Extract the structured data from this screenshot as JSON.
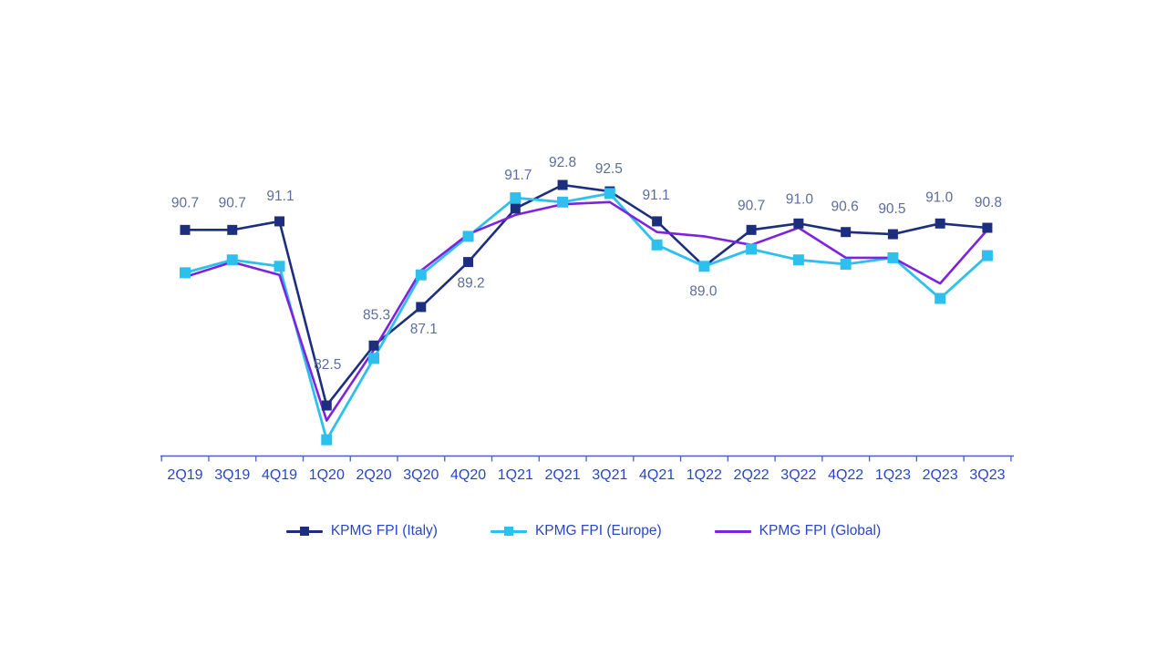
{
  "chart_data": {
    "type": "line",
    "title": "",
    "xlabel": "",
    "ylabel": "",
    "categories": [
      "2Q19",
      "3Q19",
      "4Q19",
      "1Q20",
      "2Q20",
      "3Q20",
      "4Q20",
      "1Q21",
      "2Q21",
      "3Q21",
      "4Q21",
      "1Q22",
      "2Q22",
      "3Q22",
      "4Q22",
      "1Q23",
      "2Q23",
      "3Q23"
    ],
    "series": [
      {
        "name": "KPMG FPI (Italy)",
        "color": "#1d2e7f",
        "marker": "square",
        "data_labels_visible": true,
        "values": [
          90.7,
          90.7,
          91.1,
          82.5,
          85.3,
          87.1,
          89.2,
          91.7,
          92.8,
          92.5,
          91.1,
          89.0,
          90.7,
          91.0,
          90.6,
          90.5,
          91.0,
          90.8
        ]
      },
      {
        "name": "KPMG FPI (Europe)",
        "color": "#2dc0ef",
        "marker": "square",
        "data_labels_visible": false,
        "values": [
          88.7,
          89.3,
          89.0,
          80.9,
          84.7,
          88.6,
          90.4,
          92.2,
          92.0,
          92.4,
          90.0,
          89.0,
          89.8,
          89.3,
          89.1,
          89.4,
          87.5,
          89.5
        ]
      },
      {
        "name": "KPMG FPI (Global)",
        "color": "#7e22e0",
        "marker": "none",
        "data_labels_visible": false,
        "values": [
          88.5,
          89.2,
          88.6,
          81.8,
          85.1,
          88.8,
          90.5,
          91.4,
          91.9,
          92.0,
          90.6,
          90.4,
          90.0,
          90.8,
          89.4,
          89.4,
          88.2,
          90.7
        ]
      }
    ],
    "axis": {
      "tick_label_color": "#2946c5",
      "axis_line_color": "#4a5fc1",
      "data_label_color": "#5d6d9d",
      "grid": "off",
      "y_axis_visible": false,
      "ylim": [
        80.2,
        93.6
      ]
    },
    "legend_position": "bottom"
  }
}
